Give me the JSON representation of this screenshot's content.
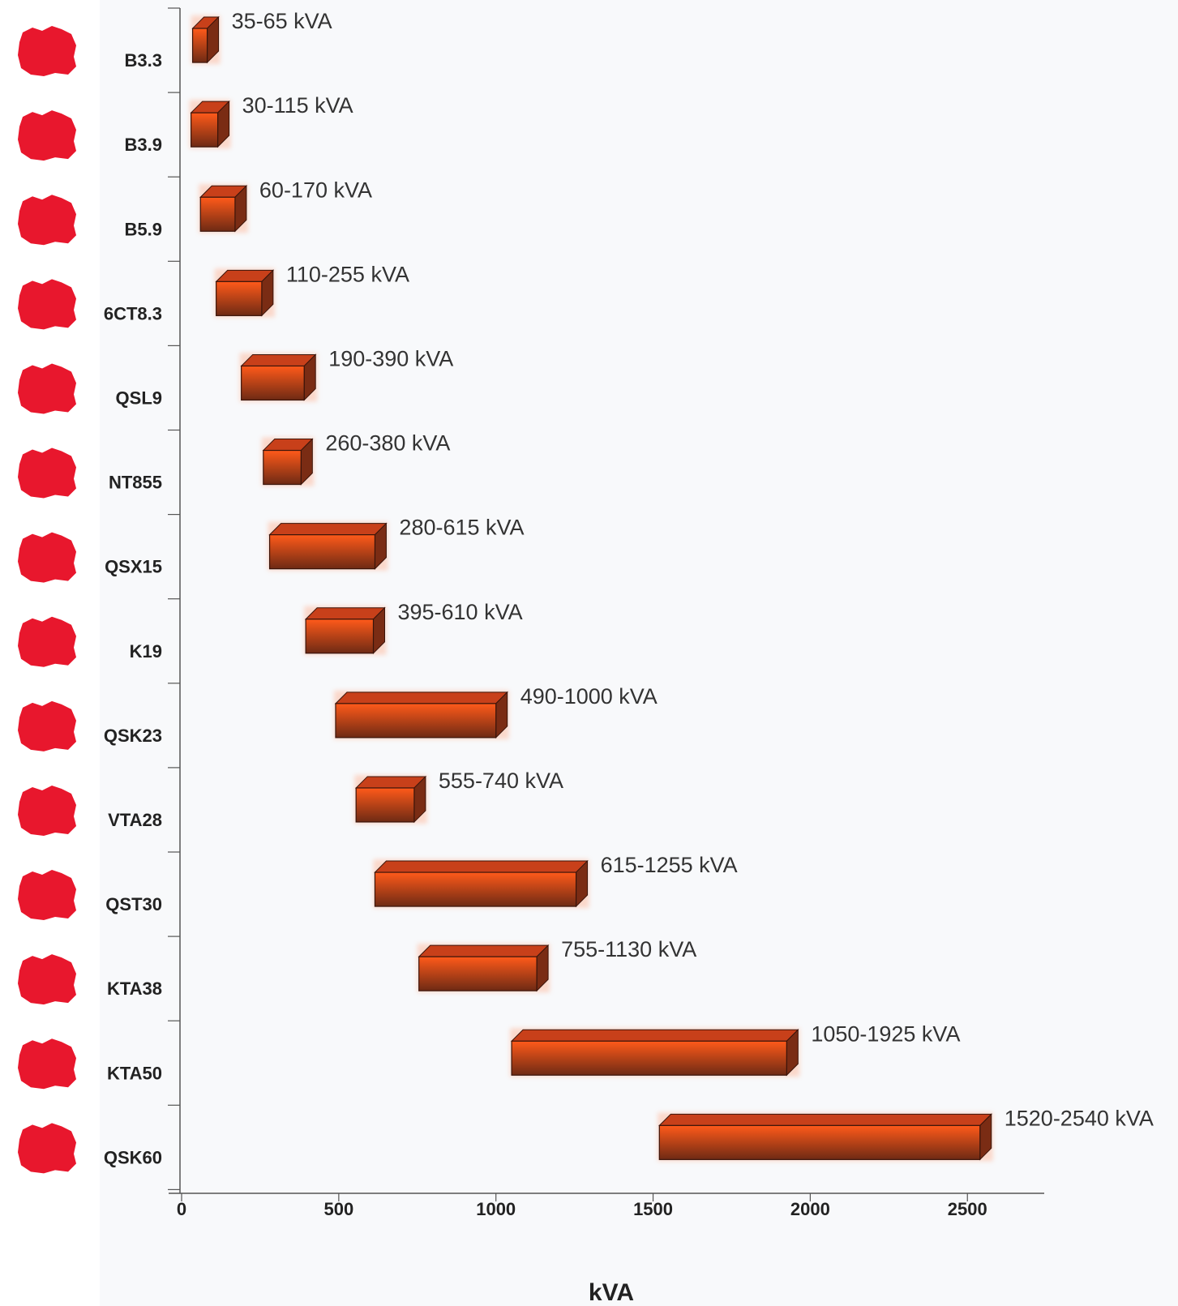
{
  "colors": {
    "bar_front_top": "#ff5a1a",
    "bar_front_bottom": "#6e2a14",
    "bar_top_face": "#c8401a",
    "bar_side_face": "#7a2c14",
    "engine_icon": "#e8172d",
    "axis": "#555555",
    "text": "#222222"
  },
  "chart_data": {
    "type": "bar",
    "orientation": "horizontal-range",
    "xlabel": "kVA",
    "xlim": [
      0,
      2750
    ],
    "xticks": [
      0,
      500,
      1000,
      1500,
      2000,
      2500
    ],
    "grid": false,
    "engines": [
      {
        "name": "B3.3",
        "min": 35,
        "max": 65,
        "label": "35-65 kVA",
        "icon": "engine-icon"
      },
      {
        "name": "B3.9",
        "min": 30,
        "max": 115,
        "label": "30-115 kVA",
        "icon": "engine-icon"
      },
      {
        "name": "B5.9",
        "min": 60,
        "max": 170,
        "label": "60-170 kVA",
        "icon": "engine-icon"
      },
      {
        "name": "6CT8.3",
        "min": 110,
        "max": 255,
        "label": "110-255 kVA",
        "icon": "engine-icon"
      },
      {
        "name": "QSL9",
        "min": 190,
        "max": 390,
        "label": "190-390 kVA",
        "icon": "engine-icon"
      },
      {
        "name": "NT855",
        "min": 260,
        "max": 380,
        "label": "260-380 kVA",
        "icon": "engine-icon"
      },
      {
        "name": "QSX15",
        "min": 280,
        "max": 615,
        "label": "280-615 kVA",
        "icon": "engine-icon"
      },
      {
        "name": "K19",
        "min": 395,
        "max": 610,
        "label": "395-610 kVA",
        "icon": "engine-icon"
      },
      {
        "name": "QSK23",
        "min": 490,
        "max": 1000,
        "label": "490-1000 kVA",
        "icon": "engine-icon"
      },
      {
        "name": "VTA28",
        "min": 555,
        "max": 740,
        "label": "555-740 kVA",
        "icon": "engine-icon"
      },
      {
        "name": "QST30",
        "min": 615,
        "max": 1255,
        "label": "615-1255 kVA",
        "icon": "engine-icon"
      },
      {
        "name": "KTA38",
        "min": 755,
        "max": 1130,
        "label": "755-1130 kVA",
        "icon": "engine-icon"
      },
      {
        "name": "KTA50",
        "min": 1050,
        "max": 1925,
        "label": "1050-1925 kVA",
        "icon": "engine-icon"
      },
      {
        "name": "QSK60",
        "min": 1520,
        "max": 2540,
        "label": "1520-2540 kVA",
        "icon": "engine-icon"
      }
    ]
  }
}
